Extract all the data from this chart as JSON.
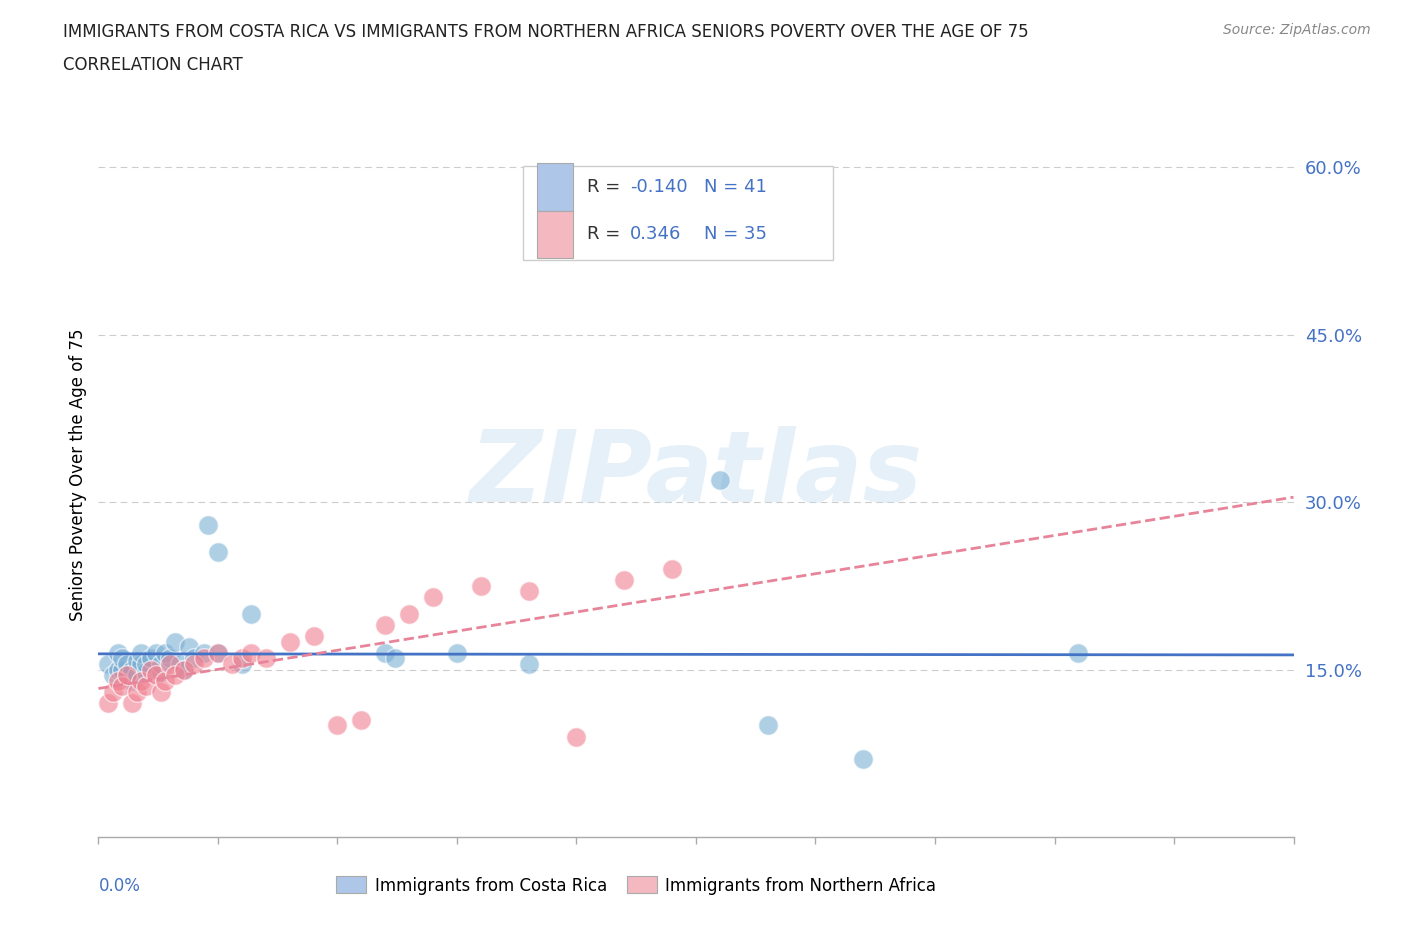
{
  "title_line1": "IMMIGRANTS FROM COSTA RICA VS IMMIGRANTS FROM NORTHERN AFRICA SENIORS POVERTY OVER THE AGE OF 75",
  "title_line2": "CORRELATION CHART",
  "source": "Source: ZipAtlas.com",
  "ylabel": "Seniors Poverty Over the Age of 75",
  "ytick_vals": [
    0.15,
    0.3,
    0.45,
    0.6
  ],
  "xmin": 0.0,
  "xmax": 0.25,
  "ymin": 0.0,
  "ymax": 0.65,
  "legend1_color": "#aec6e8",
  "legend2_color": "#f4b8c1",
  "scatter1_color": "#7bafd4",
  "scatter2_color": "#f08090",
  "line1_color": "#4472c4",
  "line2_color": "#e8849a",
  "watermark": "ZIPatlas",
  "blue_R": -0.14,
  "blue_N": 41,
  "pink_R": 0.346,
  "pink_N": 35,
  "blue_x": [
    0.002,
    0.003,
    0.004,
    0.004,
    0.005,
    0.005,
    0.006,
    0.006,
    0.007,
    0.007,
    0.008,
    0.008,
    0.009,
    0.009,
    0.01,
    0.01,
    0.011,
    0.012,
    0.013,
    0.013,
    0.014,
    0.015,
    0.016,
    0.017,
    0.018,
    0.019,
    0.02,
    0.022,
    0.023,
    0.025,
    0.025,
    0.03,
    0.032,
    0.06,
    0.062,
    0.075,
    0.09,
    0.13,
    0.14,
    0.16,
    0.205
  ],
  "blue_y": [
    0.155,
    0.145,
    0.15,
    0.165,
    0.15,
    0.16,
    0.145,
    0.155,
    0.14,
    0.15,
    0.145,
    0.158,
    0.155,
    0.165,
    0.148,
    0.155,
    0.16,
    0.165,
    0.148,
    0.155,
    0.165,
    0.16,
    0.175,
    0.155,
    0.15,
    0.17,
    0.16,
    0.165,
    0.28,
    0.255,
    0.165,
    0.155,
    0.2,
    0.165,
    0.16,
    0.165,
    0.155,
    0.32,
    0.1,
    0.07,
    0.165
  ],
  "pink_x": [
    0.002,
    0.003,
    0.004,
    0.005,
    0.006,
    0.007,
    0.008,
    0.009,
    0.01,
    0.011,
    0.012,
    0.013,
    0.014,
    0.015,
    0.016,
    0.018,
    0.02,
    0.022,
    0.025,
    0.028,
    0.03,
    0.032,
    0.035,
    0.04,
    0.045,
    0.05,
    0.055,
    0.06,
    0.065,
    0.07,
    0.08,
    0.09,
    0.1,
    0.11,
    0.12
  ],
  "pink_y": [
    0.12,
    0.13,
    0.14,
    0.135,
    0.145,
    0.12,
    0.13,
    0.14,
    0.135,
    0.15,
    0.145,
    0.13,
    0.14,
    0.155,
    0.145,
    0.15,
    0.155,
    0.16,
    0.165,
    0.155,
    0.16,
    0.165,
    0.16,
    0.175,
    0.18,
    0.1,
    0.105,
    0.19,
    0.2,
    0.215,
    0.225,
    0.22,
    0.09,
    0.23,
    0.24
  ]
}
